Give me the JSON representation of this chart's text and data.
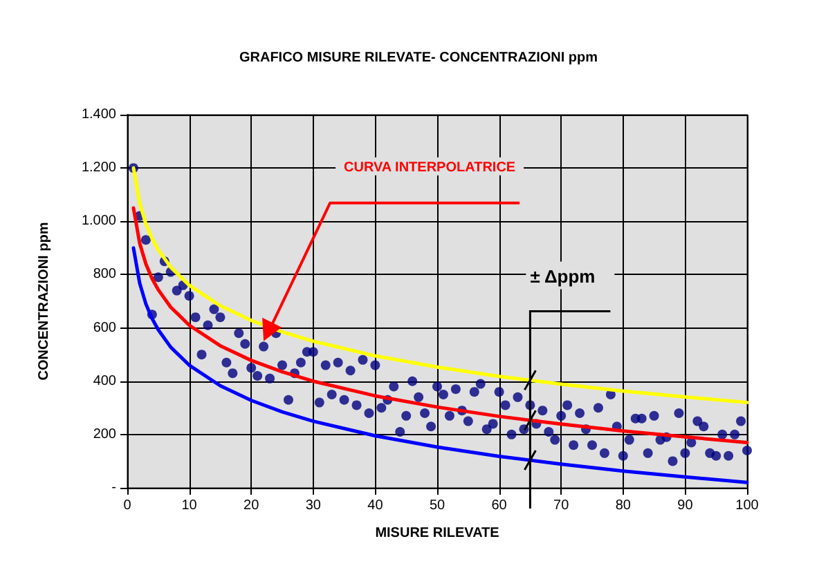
{
  "chart_data": {
    "type": "scatter",
    "title": "GRAFICO MISURE RILEVATE- CONCENTRAZIONI ppm",
    "xlabel": "MISURE RILEVATE",
    "ylabel": "CONCENTRAZIONI ppm",
    "xlim": [
      0,
      100
    ],
    "xticks": [
      0,
      10,
      20,
      30,
      40,
      50,
      60,
      70,
      80,
      90,
      100
    ],
    "ylim": [
      0,
      1400
    ],
    "yticks": [
      {
        "value": 0,
        "label": "-"
      },
      200,
      400,
      600,
      800,
      {
        "value": 1000,
        "label": "1.000"
      },
      {
        "value": 1200,
        "label": "1.200"
      },
      {
        "value": 1400,
        "label": "1.400"
      }
    ],
    "grid": true,
    "annotations": [
      "CURVA INTERPOLATRICE",
      "± Δppm"
    ],
    "series": [
      {
        "color": "#000080",
        "marker": "circle",
        "x": [
          1,
          2,
          3,
          4,
          5,
          6,
          7,
          8,
          9,
          10,
          11,
          12,
          13,
          14,
          15,
          16,
          17,
          18,
          19,
          20,
          21,
          22,
          23,
          24,
          25,
          26,
          27,
          28,
          29,
          30,
          31,
          32,
          33,
          34,
          35,
          36,
          37,
          38,
          39,
          40,
          41,
          42,
          43,
          44,
          45,
          46,
          47,
          48,
          49,
          50,
          51,
          52,
          53,
          54,
          55,
          56,
          57,
          58,
          59,
          60,
          61,
          62,
          63,
          64,
          65,
          66,
          67,
          68,
          69,
          70,
          71,
          72,
          73,
          74,
          75,
          76,
          77,
          78,
          79,
          80,
          81,
          82,
          83,
          84,
          85,
          86,
          87,
          88,
          89,
          90,
          91,
          92,
          93,
          94,
          95,
          96,
          97,
          98,
          99,
          100
        ],
        "values": [
          1200,
          1020,
          930,
          650,
          790,
          850,
          810,
          740,
          760,
          720,
          640,
          500,
          610,
          670,
          640,
          470,
          430,
          580,
          540,
          450,
          420,
          530,
          410,
          580,
          460,
          330,
          430,
          470,
          510,
          510,
          320,
          460,
          350,
          470,
          330,
          440,
          310,
          480,
          280,
          460,
          300,
          330,
          380,
          210,
          270,
          400,
          340,
          280,
          230,
          380,
          350,
          270,
          370,
          290,
          250,
          360,
          390,
          220,
          240,
          360,
          310,
          200,
          340,
          220,
          310,
          240,
          290,
          210,
          180,
          270,
          310,
          160,
          280,
          220,
          160,
          300,
          130,
          350,
          230,
          120,
          180,
          260,
          260,
          130,
          270,
          180,
          190,
          100,
          280,
          130,
          170,
          250,
          230,
          130,
          120,
          200,
          120,
          200,
          250,
          140
        ]
      },
      {
        "type": "line",
        "color": "#ffff00",
        "marker": "none",
        "x": [
          1,
          2,
          3,
          4,
          5,
          7,
          10,
          15,
          20,
          25,
          30,
          40,
          50,
          60,
          70,
          80,
          90,
          100
        ],
        "values": [
          1200,
          1068,
          990,
          935,
          893,
          828,
          760,
          683,
          628,
          585,
          550,
          495,
          453,
          418,
          389,
          363,
          341,
          320
        ]
      },
      {
        "type": "line",
        "color": "#ff0000",
        "marker": "none",
        "x": [
          1,
          2,
          3,
          4,
          5,
          7,
          10,
          15,
          20,
          25,
          30,
          40,
          50,
          60,
          70,
          80,
          90,
          100
        ],
        "values": [
          1050,
          918,
          840,
          785,
          743,
          678,
          610,
          533,
          478,
          435,
          400,
          345,
          303,
          268,
          239,
          213,
          191,
          170
        ]
      },
      {
        "type": "line",
        "color": "#0000ff",
        "marker": "none",
        "x": [
          1,
          2,
          3,
          4,
          5,
          7,
          10,
          15,
          20,
          25,
          30,
          40,
          50,
          60,
          70,
          80,
          90,
          100
        ],
        "values": [
          900,
          768,
          690,
          635,
          593,
          528,
          460,
          383,
          328,
          285,
          250,
          195,
          153,
          118,
          89,
          63,
          41,
          20
        ]
      }
    ]
  }
}
